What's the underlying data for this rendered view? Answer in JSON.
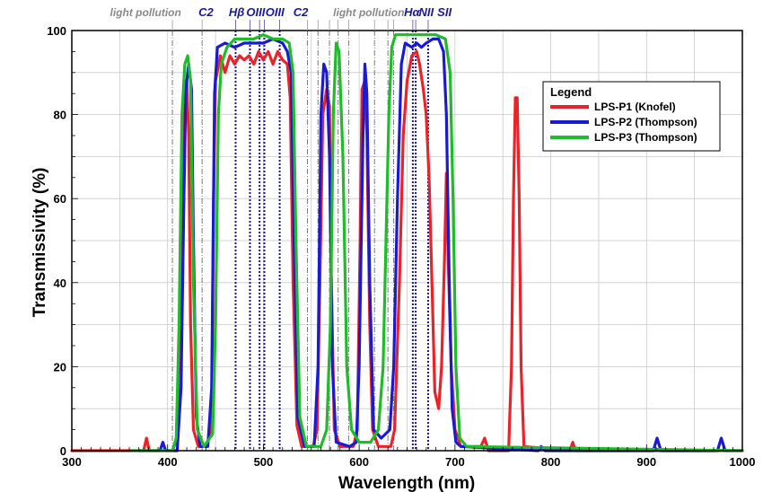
{
  "chart_data": {
    "type": "line",
    "xlabel": "Wavelength (nm)",
    "ylabel": "Transmissivity (%)",
    "xlim": [
      300,
      1000
    ],
    "ylim": [
      0,
      100
    ],
    "xticks": [
      300,
      400,
      500,
      600,
      700,
      800,
      900,
      1000
    ],
    "yticks": [
      0,
      20,
      40,
      60,
      80,
      100
    ],
    "grid": true,
    "legend": {
      "title": "Legend",
      "placement": "right"
    },
    "annotations": {
      "light_pollution_left": {
        "text": "light pollution",
        "x": 377
      },
      "light_pollution_right": {
        "text": "light pollution",
        "x": 610
      },
      "line_labels": [
        {
          "text": "C2",
          "x": 440
        },
        {
          "text": "Hβ",
          "x": 472
        },
        {
          "text": "OIII",
          "x": 492
        },
        {
          "text": "OIII",
          "x": 512
        },
        {
          "text": "C2",
          "x": 539
        },
        {
          "text": "Hα",
          "x": 655
        },
        {
          "text": "NII",
          "x": 670
        },
        {
          "text": "SII",
          "x": 689
        }
      ],
      "gray_lines": [
        405,
        436,
        546,
        557,
        569,
        578,
        589,
        616,
        630,
        636
      ],
      "blue_dotted_lines": [
        471,
        486,
        496,
        501,
        517,
        656,
        659,
        672
      ]
    },
    "series": [
      {
        "name": "LPS-P1 (Knofel)",
        "color": "#e8232a",
        "points": [
          [
            300,
            0
          ],
          [
            375,
            0
          ],
          [
            378,
            3
          ],
          [
            381,
            0
          ],
          [
            405,
            0
          ],
          [
            410,
            3
          ],
          [
            414,
            50
          ],
          [
            416,
            82
          ],
          [
            418,
            88
          ],
          [
            420,
            88
          ],
          [
            422,
            75
          ],
          [
            424,
            30
          ],
          [
            427,
            5
          ],
          [
            432,
            1
          ],
          [
            440,
            1
          ],
          [
            446,
            5
          ],
          [
            448,
            60
          ],
          [
            450,
            88
          ],
          [
            455,
            94
          ],
          [
            460,
            90
          ],
          [
            465,
            94
          ],
          [
            470,
            92
          ],
          [
            475,
            94
          ],
          [
            480,
            93
          ],
          [
            485,
            94
          ],
          [
            490,
            92
          ],
          [
            495,
            95
          ],
          [
            500,
            93
          ],
          [
            505,
            95
          ],
          [
            510,
            92
          ],
          [
            515,
            95
          ],
          [
            520,
            93
          ],
          [
            525,
            92
          ],
          [
            528,
            84
          ],
          [
            531,
            40
          ],
          [
            535,
            6
          ],
          [
            540,
            1
          ],
          [
            552,
            1
          ],
          [
            556,
            5
          ],
          [
            559,
            40
          ],
          [
            562,
            80
          ],
          [
            566,
            86
          ],
          [
            569,
            82
          ],
          [
            571,
            40
          ],
          [
            574,
            5
          ],
          [
            580,
            1
          ],
          [
            594,
            1
          ],
          [
            598,
            5
          ],
          [
            601,
            50
          ],
          [
            603,
            86
          ],
          [
            606,
            88
          ],
          [
            608,
            75
          ],
          [
            611,
            30
          ],
          [
            614,
            5
          ],
          [
            620,
            1
          ],
          [
            633,
            1
          ],
          [
            637,
            5
          ],
          [
            642,
            40
          ],
          [
            646,
            75
          ],
          [
            650,
            88
          ],
          [
            655,
            94
          ],
          [
            660,
            95
          ],
          [
            663,
            92
          ],
          [
            667,
            86
          ],
          [
            670,
            80
          ],
          [
            673,
            65
          ],
          [
            676,
            40
          ],
          [
            679,
            14
          ],
          [
            683,
            10
          ],
          [
            686,
            20
          ],
          [
            689,
            45
          ],
          [
            691,
            66
          ],
          [
            693,
            45
          ],
          [
            696,
            20
          ],
          [
            700,
            5
          ],
          [
            706,
            1
          ],
          [
            727,
            1
          ],
          [
            731,
            3
          ],
          [
            735,
            0
          ],
          [
            756,
            0
          ],
          [
            759,
            20
          ],
          [
            761,
            60
          ],
          [
            763,
            84
          ],
          [
            765,
            84
          ],
          [
            767,
            60
          ],
          [
            769,
            20
          ],
          [
            772,
            1
          ],
          [
            820,
            0
          ],
          [
            823,
            2
          ],
          [
            826,
            0
          ],
          [
            1000,
            0
          ]
        ]
      },
      {
        "name": "LPS-P2 (Thompson)",
        "color": "#1a1ad2",
        "points": [
          [
            370,
            0
          ],
          [
            392,
            0
          ],
          [
            395,
            2
          ],
          [
            398,
            0
          ],
          [
            410,
            0
          ],
          [
            414,
            15
          ],
          [
            417,
            60
          ],
          [
            419,
            86
          ],
          [
            422,
            92
          ],
          [
            425,
            86
          ],
          [
            427,
            50
          ],
          [
            430,
            8
          ],
          [
            434,
            1
          ],
          [
            442,
            1
          ],
          [
            446,
            15
          ],
          [
            449,
            85
          ],
          [
            452,
            96
          ],
          [
            460,
            97
          ],
          [
            470,
            96
          ],
          [
            480,
            97
          ],
          [
            490,
            97
          ],
          [
            500,
            97
          ],
          [
            510,
            98
          ],
          [
            520,
            97
          ],
          [
            525,
            95
          ],
          [
            529,
            90
          ],
          [
            532,
            50
          ],
          [
            536,
            8
          ],
          [
            543,
            1
          ],
          [
            553,
            1
          ],
          [
            557,
            20
          ],
          [
            560,
            80
          ],
          [
            563,
            92
          ],
          [
            566,
            90
          ],
          [
            569,
            70
          ],
          [
            572,
            20
          ],
          [
            576,
            2
          ],
          [
            590,
            1
          ],
          [
            597,
            2
          ],
          [
            600,
            20
          ],
          [
            604,
            75
          ],
          [
            606,
            92
          ],
          [
            608,
            85
          ],
          [
            611,
            40
          ],
          [
            615,
            5
          ],
          [
            623,
            3
          ],
          [
            632,
            5
          ],
          [
            636,
            20
          ],
          [
            640,
            60
          ],
          [
            644,
            92
          ],
          [
            648,
            97
          ],
          [
            655,
            96
          ],
          [
            660,
            97
          ],
          [
            665,
            96
          ],
          [
            670,
            97
          ],
          [
            677,
            98
          ],
          [
            683,
            98
          ],
          [
            688,
            95
          ],
          [
            691,
            80
          ],
          [
            694,
            40
          ],
          [
            697,
            10
          ],
          [
            701,
            2
          ],
          [
            706,
            1
          ],
          [
            787,
            0
          ],
          [
            790,
            1
          ],
          [
            794,
            0
          ],
          [
            907,
            0
          ],
          [
            911,
            3
          ],
          [
            915,
            0
          ],
          [
            974,
            0
          ],
          [
            978,
            3
          ],
          [
            982,
            0
          ],
          [
            1000,
            0
          ]
        ]
      },
      {
        "name": "LPS-P3 (Thompson)",
        "color": "#1fbb2a",
        "points": [
          [
            363,
            0
          ],
          [
            405,
            0
          ],
          [
            409,
            3
          ],
          [
            412,
            30
          ],
          [
            415,
            80
          ],
          [
            418,
            92
          ],
          [
            421,
            94
          ],
          [
            424,
            88
          ],
          [
            427,
            40
          ],
          [
            431,
            5
          ],
          [
            438,
            1
          ],
          [
            447,
            4
          ],
          [
            450,
            30
          ],
          [
            453,
            80
          ],
          [
            456,
            92
          ],
          [
            462,
            96
          ],
          [
            470,
            98
          ],
          [
            480,
            98
          ],
          [
            490,
            98
          ],
          [
            500,
            99
          ],
          [
            510,
            98
          ],
          [
            520,
            98
          ],
          [
            527,
            97
          ],
          [
            531,
            90
          ],
          [
            534,
            50
          ],
          [
            538,
            8
          ],
          [
            545,
            1
          ],
          [
            560,
            1
          ],
          [
            566,
            5
          ],
          [
            570,
            30
          ],
          [
            573,
            80
          ],
          [
            576,
            97
          ],
          [
            579,
            95
          ],
          [
            583,
            70
          ],
          [
            587,
            20
          ],
          [
            592,
            5
          ],
          [
            600,
            2
          ],
          [
            612,
            2
          ],
          [
            620,
            5
          ],
          [
            625,
            20
          ],
          [
            628,
            50
          ],
          [
            631,
            80
          ],
          [
            634,
            96
          ],
          [
            638,
            99
          ],
          [
            645,
            99
          ],
          [
            660,
            99
          ],
          [
            670,
            99
          ],
          [
            680,
            99
          ],
          [
            690,
            98
          ],
          [
            695,
            90
          ],
          [
            698,
            60
          ],
          [
            701,
            20
          ],
          [
            705,
            3
          ],
          [
            712,
            1
          ],
          [
            1000,
            0
          ]
        ]
      }
    ]
  }
}
